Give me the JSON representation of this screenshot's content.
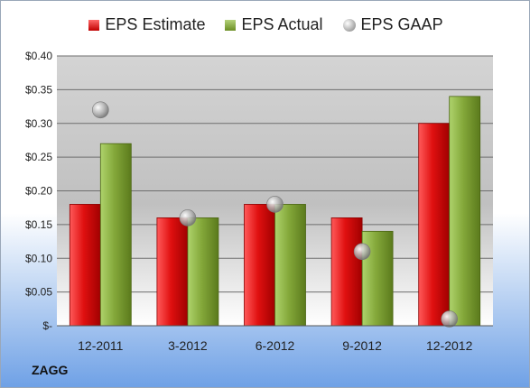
{
  "chart_data": {
    "type": "bar",
    "categories": [
      "12-2011",
      "3-2012",
      "6-2012",
      "9-2012",
      "12-2012"
    ],
    "series": [
      {
        "name": "EPS Estimate",
        "type": "bar",
        "values": [
          0.18,
          0.16,
          0.18,
          0.16,
          0.3
        ],
        "color": "#c00000"
      },
      {
        "name": "EPS Actual",
        "type": "bar",
        "values": [
          0.27,
          0.16,
          0.18,
          0.14,
          0.34
        ],
        "color": "#6b8e23"
      },
      {
        "name": "EPS GAAP",
        "type": "scatter",
        "values": [
          0.32,
          0.16,
          0.18,
          0.11,
          0.01
        ],
        "color": "#a0a0a0"
      }
    ],
    "ylim": [
      0,
      0.4
    ],
    "yticks": [
      0,
      0.05,
      0.1,
      0.15,
      0.2,
      0.25,
      0.3,
      0.35,
      0.4
    ],
    "ytick_labels": [
      "$-",
      "$0.05",
      "$0.10",
      "$0.15",
      "$0.20",
      "$0.25",
      "$0.30",
      "$0.35",
      "$0.40"
    ],
    "grid": true,
    "legend_position": "top"
  },
  "legend": {
    "estimate": "EPS Estimate",
    "actual": "EPS Actual",
    "gaap": "EPS GAAP"
  },
  "company": "ZAGG"
}
